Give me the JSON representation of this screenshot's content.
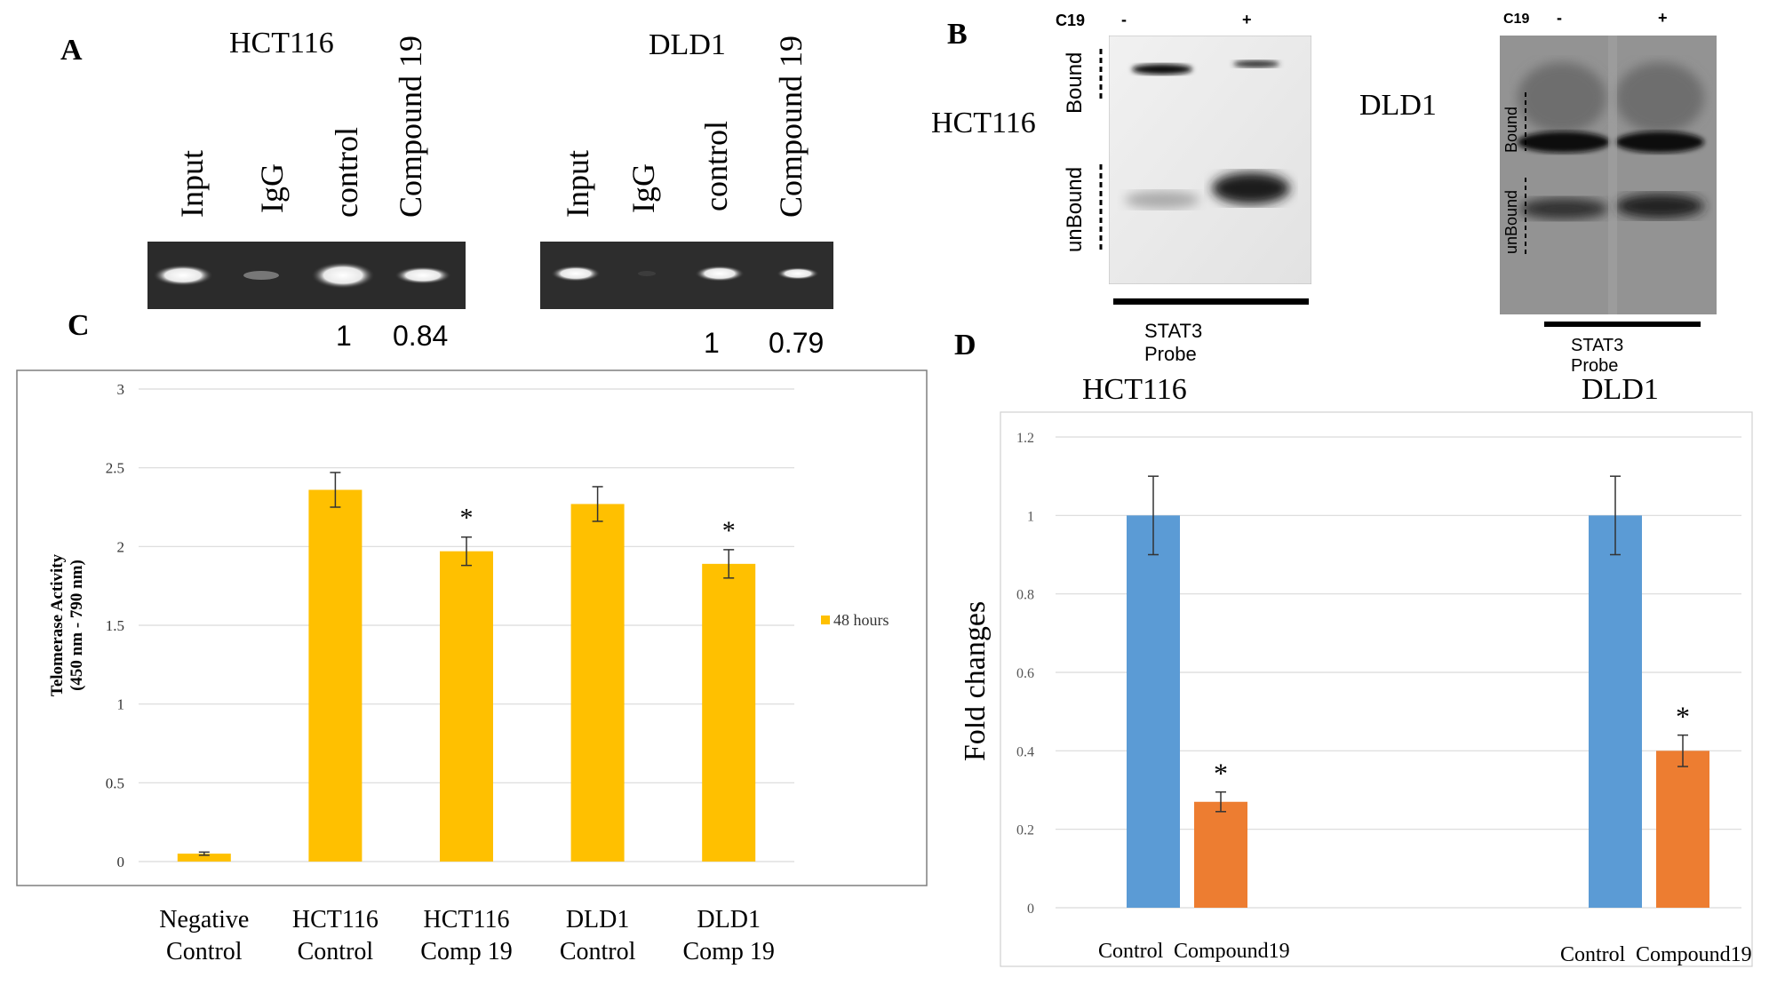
{
  "panelA": {
    "letter": "A",
    "hct_title": "HCT116",
    "dld_title": "DLD1",
    "lanes": [
      "Input",
      "IgG",
      "control",
      "Compound 19"
    ],
    "hct_quant": [
      "1",
      "0.84"
    ],
    "dld_quant": [
      "1",
      "0.79"
    ]
  },
  "panelB": {
    "letter": "B",
    "hct_label": "HCT116",
    "dld_label": "DLD1",
    "c19": "C19",
    "minus": "-",
    "plus": "+",
    "bound": "Bound",
    "unbound": "unBound",
    "probe": "STAT3 Probe"
  },
  "panelC": {
    "letter": "C",
    "legend": "48 hours",
    "color": "#FFC000"
  },
  "panelD": {
    "letter": "D",
    "hct_title": "HCT116",
    "dld_title": "DLD1",
    "color_control": "#5B9BD5",
    "color_compound": "#ED7D31"
  },
  "chart_data": [
    {
      "type": "bar",
      "title": "",
      "ylabel": "Telomerase Activity\n(450 nm - 790 nm)",
      "xlabel": "",
      "categories": [
        "Negative\nControl",
        "HCT116\nControl",
        "HCT116\nComp 19",
        "DLD1\nControl",
        "DLD1\nComp 19"
      ],
      "series": [
        {
          "name": "48 hours",
          "values": [
            0.05,
            2.36,
            1.97,
            2.27,
            1.89
          ],
          "errors": [
            0.01,
            0.11,
            0.09,
            0.11,
            0.09
          ]
        }
      ],
      "significance": [
        "",
        "",
        "*",
        "",
        "*"
      ],
      "ylim": [
        0,
        3
      ],
      "yticks": [
        "0",
        "0.5",
        "1",
        "1.5",
        "2",
        "2.5",
        "3"
      ],
      "grid": true,
      "legend": "right"
    },
    {
      "type": "bar",
      "title": "",
      "ylabel": "Fold changes",
      "xlabel": "",
      "groups": [
        {
          "name": "HCT116",
          "categories": [
            "Control",
            "Compound19"
          ],
          "values": [
            1.0,
            0.27
          ],
          "errors": [
            0.1,
            0.025
          ],
          "significance": [
            "",
            "*"
          ]
        },
        {
          "name": "DLD1",
          "categories": [
            "Control",
            "Compound19"
          ],
          "values": [
            1.0,
            0.4
          ],
          "errors": [
            0.1,
            0.04
          ],
          "significance": [
            "",
            "*"
          ]
        }
      ],
      "ylim": [
        0,
        1.2
      ],
      "yticks": [
        "0",
        "0.2",
        "0.4",
        "0.6",
        "0.8",
        "1",
        "1.2"
      ],
      "grid": true,
      "legend": "none"
    }
  ]
}
